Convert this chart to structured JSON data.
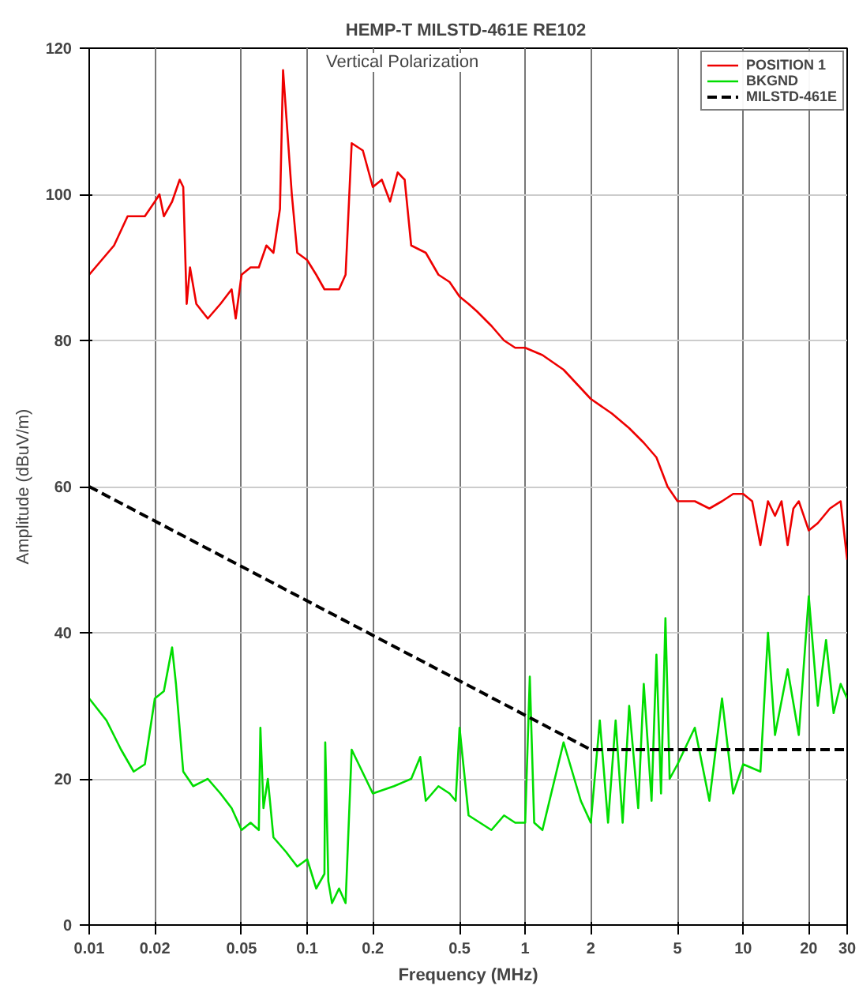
{
  "chart_data": {
    "type": "line",
    "title": "HEMP-T  MILSTD-461E RE102",
    "xlabel": "Frequency (MHz)",
    "ylabel": "Amplitude (dBuV/m)",
    "annotations": [
      "Vertical Polarization"
    ],
    "log": "x",
    "grid": true,
    "legend": "top right",
    "xlim": [
      0.01,
      30
    ],
    "xticks": [
      0.01,
      0.02,
      0.05,
      0.1,
      0.2,
      0.5,
      1,
      2,
      5,
      10,
      20,
      30
    ],
    "ylim": [
      0,
      120
    ],
    "yticks": [
      0,
      20,
      40,
      60,
      80,
      100,
      120
    ],
    "series": [
      {
        "name": "POSITION 1",
        "color": "#ee0000",
        "line_style": "solid",
        "x": [
          0.01,
          0.013,
          0.015,
          0.018,
          0.02,
          0.021,
          0.022,
          0.024,
          0.026,
          0.027,
          0.028,
          0.029,
          0.031,
          0.035,
          0.04,
          0.045,
          0.047,
          0.05,
          0.055,
          0.06,
          0.065,
          0.07,
          0.075,
          0.0775,
          0.085,
          0.09,
          0.1,
          0.11,
          0.12,
          0.13,
          0.14,
          0.15,
          0.16,
          0.18,
          0.2,
          0.22,
          0.24,
          0.26,
          0.28,
          0.3,
          0.35,
          0.4,
          0.45,
          0.5,
          0.55,
          0.6,
          0.7,
          0.8,
          0.9,
          1,
          1.2,
          1.5,
          2,
          2.5,
          3,
          3.5,
          4,
          4.5,
          5,
          6,
          7,
          8,
          9,
          10,
          11,
          12,
          13,
          14,
          15,
          16,
          17,
          18,
          20,
          22,
          25,
          28,
          30
        ],
        "values": [
          89,
          93,
          97,
          97,
          99,
          100,
          97,
          99,
          102,
          101,
          85,
          90,
          85,
          83,
          85,
          87,
          83,
          89,
          90,
          90,
          93,
          92,
          98,
          117,
          100,
          92,
          91,
          89,
          87,
          87,
          87,
          89,
          107,
          106,
          101,
          102,
          99,
          103,
          102,
          93,
          92,
          89,
          88,
          86,
          85,
          84,
          82,
          80,
          79,
          79,
          78,
          76,
          72,
          70,
          68,
          66,
          64,
          60,
          58,
          58,
          57,
          58,
          59,
          59,
          58,
          52,
          58,
          56,
          58,
          52,
          57,
          58,
          54,
          55,
          57,
          58,
          50
        ]
      },
      {
        "name": "BKGND",
        "color": "#00dd00",
        "line_style": "solid",
        "x": [
          0.01,
          0.012,
          0.014,
          0.016,
          0.018,
          0.02,
          0.022,
          0.024,
          0.025,
          0.027,
          0.03,
          0.035,
          0.04,
          0.045,
          0.05,
          0.055,
          0.06,
          0.061,
          0.063,
          0.066,
          0.07,
          0.08,
          0.09,
          0.1,
          0.11,
          0.12,
          0.121,
          0.125,
          0.13,
          0.14,
          0.15,
          0.16,
          0.2,
          0.25,
          0.3,
          0.33,
          0.35,
          0.4,
          0.45,
          0.48,
          0.5,
          0.55,
          0.7,
          0.8,
          0.9,
          1,
          1.05,
          1.1,
          1.2,
          1.5,
          1.8,
          2,
          2.2,
          2.4,
          2.6,
          2.8,
          3,
          3.3,
          3.5,
          3.8,
          4,
          4.2,
          4.4,
          4.6,
          5,
          6,
          7,
          8,
          9,
          10,
          12,
          13,
          14,
          16,
          18,
          20,
          22,
          24,
          26,
          28,
          30
        ],
        "values": [
          31,
          28,
          24,
          21,
          22,
          31,
          32,
          38,
          33,
          21,
          19,
          20,
          18,
          16,
          13,
          14,
          13,
          27,
          16,
          20,
          12,
          10,
          8,
          9,
          5,
          7,
          25,
          6,
          3,
          5,
          3,
          24,
          18,
          19,
          20,
          23,
          17,
          19,
          18,
          17,
          27,
          15,
          13,
          15,
          14,
          14,
          34,
          14,
          13,
          25,
          17,
          14,
          28,
          14,
          28,
          14,
          30,
          16,
          33,
          17,
          37,
          18,
          42,
          20,
          22,
          27,
          17,
          31,
          18,
          22,
          21,
          40,
          26,
          35,
          26,
          45,
          30,
          39,
          29,
          33,
          31
        ]
      },
      {
        "name": "MILSTD-461E",
        "color": "#000000",
        "line_style": "dashed",
        "x": [
          0.01,
          2,
          30
        ],
        "values": [
          60,
          24,
          24
        ]
      }
    ]
  }
}
